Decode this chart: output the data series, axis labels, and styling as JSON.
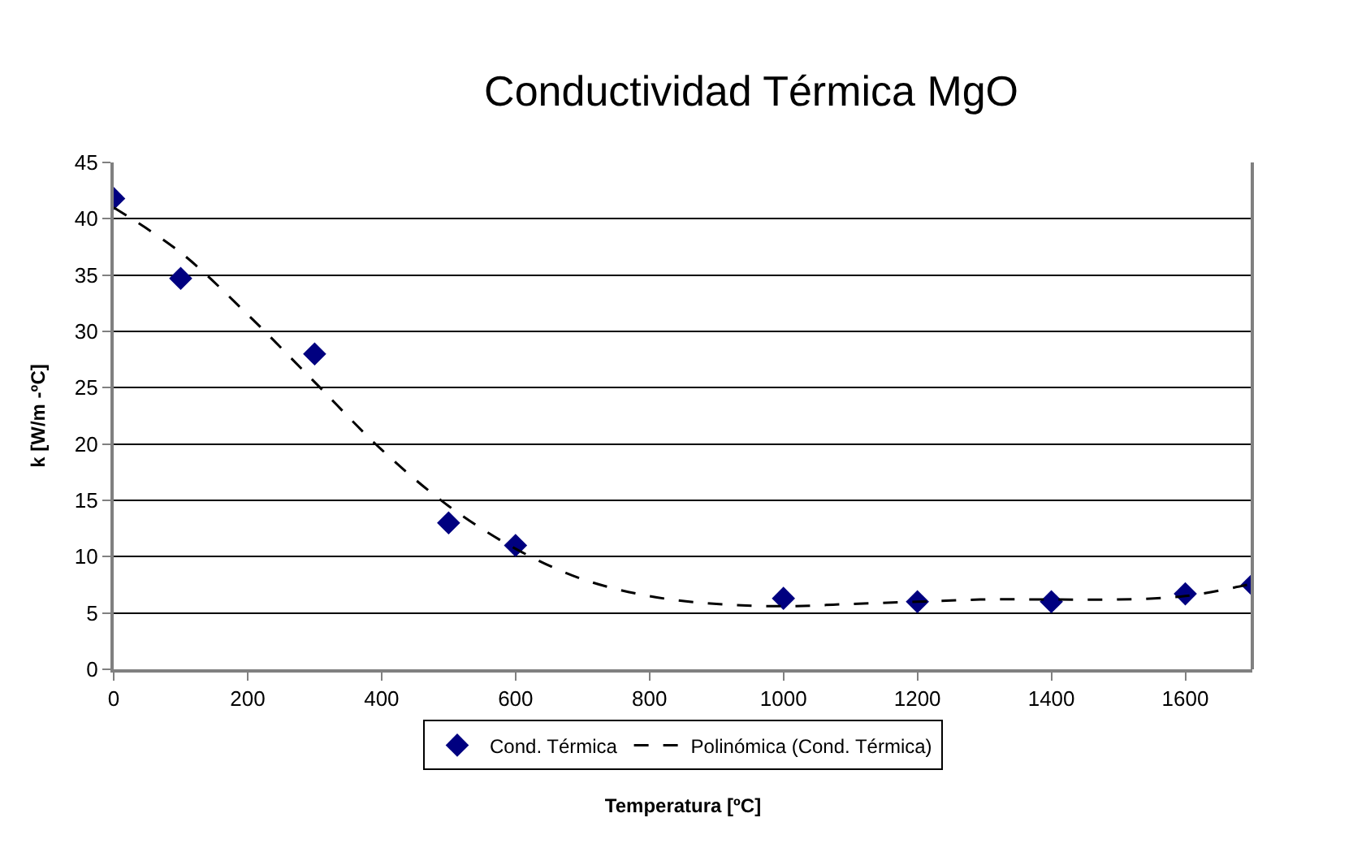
{
  "chart_data": {
    "type": "scatter",
    "title": "Conductividad Térmica MgO",
    "xlabel": "Temperatura [ºC]",
    "ylabel": "k [W/m -ºC]",
    "series": [
      {
        "name": "Cond. Térmica",
        "color": "#000080",
        "marker": "diamond",
        "x": [
          0,
          100,
          300,
          500,
          600,
          1000,
          1200,
          1400,
          1600,
          1700
        ],
        "values": [
          41.8,
          34.7,
          28,
          13,
          11,
          6.3,
          6,
          6,
          6.7,
          7.5
        ]
      },
      {
        "name": "Polinómica (Cond. Térmica)",
        "type": "line",
        "color": "#000000",
        "line_style": "dashed",
        "marker": "none",
        "x": [
          0,
          100,
          200,
          300,
          400,
          500,
          600,
          700,
          800,
          900,
          1000,
          1100,
          1200,
          1300,
          1400,
          1500,
          1600,
          1700
        ],
        "values": [
          41,
          37,
          31.5,
          25.5,
          19.5,
          14.5,
          10.7,
          8,
          6.5,
          5.8,
          5.6,
          5.8,
          6,
          6.2,
          6.2,
          6.2,
          6.5,
          7.6
        ]
      }
    ],
    "xlim": [
      0,
      1700
    ],
    "xticks": [
      0,
      200,
      400,
      600,
      800,
      1000,
      1200,
      1400,
      1600
    ],
    "ylim": [
      0,
      45
    ],
    "yticks": [
      0,
      5,
      10,
      15,
      20,
      25,
      30,
      35,
      40,
      45
    ],
    "grid": "y",
    "legend": "bottom"
  }
}
